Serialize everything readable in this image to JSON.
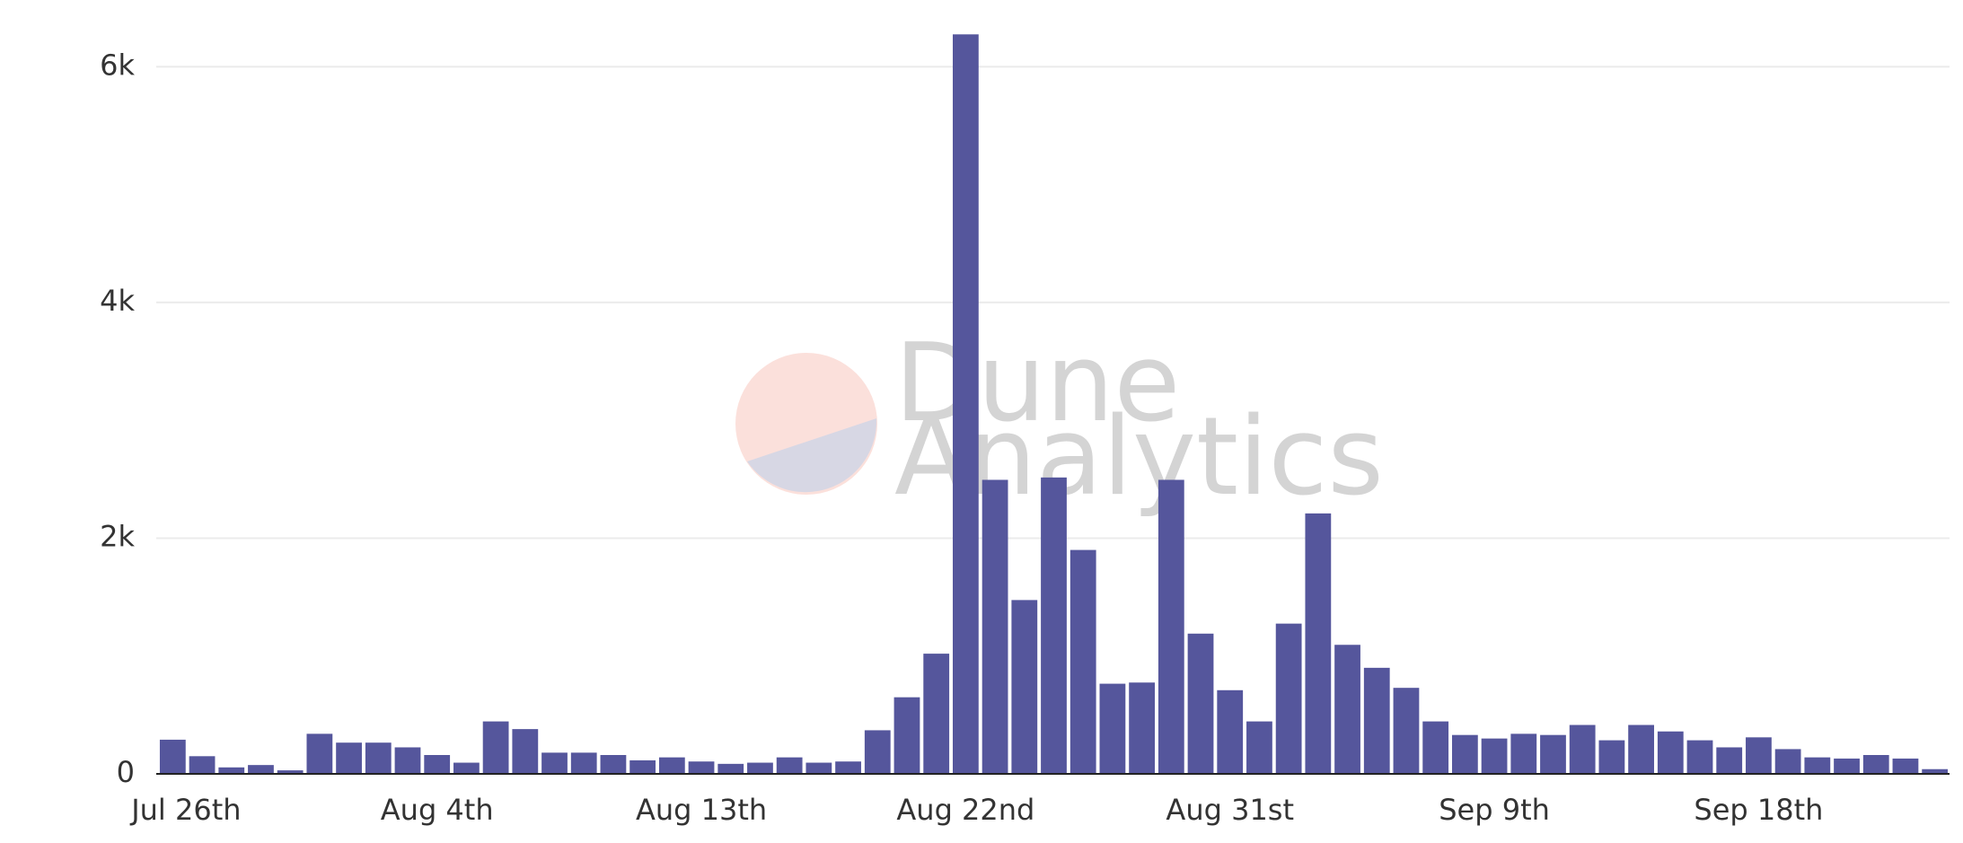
{
  "chart_data": {
    "type": "bar",
    "watermark": [
      "Dune",
      "Analytics"
    ],
    "categories": [
      "Jul 26th",
      null,
      null,
      null,
      null,
      null,
      null,
      null,
      null,
      "Aug 4th",
      null,
      null,
      null,
      null,
      null,
      null,
      null,
      null,
      "Aug 13th",
      null,
      null,
      null,
      null,
      null,
      null,
      null,
      null,
      "Aug 22nd",
      null,
      null,
      null,
      null,
      null,
      null,
      null,
      null,
      "Aug 31st",
      null,
      null,
      null,
      null,
      null,
      null,
      null,
      null,
      "Sep 9th",
      null,
      null,
      null,
      null,
      null,
      null,
      null,
      null,
      "Sep 18th",
      null,
      null,
      null,
      null,
      null,
      null
    ],
    "values": [
      290,
      150,
      55,
      75,
      30,
      340,
      265,
      265,
      225,
      160,
      95,
      445,
      380,
      180,
      180,
      160,
      115,
      140,
      105,
      85,
      95,
      140,
      95,
      105,
      370,
      650,
      1020,
      6275,
      2495,
      1475,
      2515,
      1900,
      765,
      775,
      2495,
      1190,
      710,
      445,
      1275,
      2210,
      1095,
      900,
      730,
      445,
      330,
      300,
      340,
      330,
      415,
      285,
      415,
      360,
      285,
      225,
      310,
      210,
      140,
      130,
      160,
      130,
      40
    ],
    "color": "#55569c",
    "ylim": [
      0,
      6300
    ],
    "yticks": [
      0,
      {
        "value": 2000,
        "label": "2k"
      },
      {
        "value": 4000,
        "label": "4k"
      },
      {
        "value": 6000,
        "label": "6k"
      }
    ],
    "grid": true
  }
}
